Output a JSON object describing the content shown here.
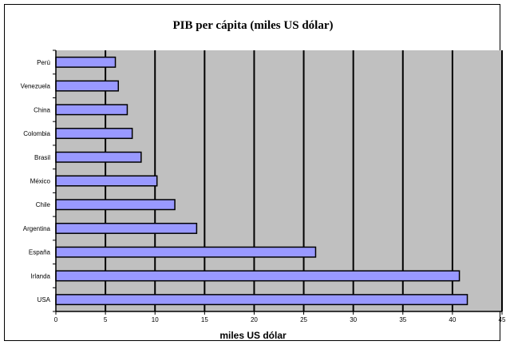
{
  "chart_data": {
    "type": "bar",
    "orientation": "horizontal",
    "title": "PIB per cápita (miles US dólar)",
    "xlabel": "miles US dólar",
    "ylabel": "",
    "categories": [
      "Perú",
      "Venezuela",
      "China",
      "Colombia",
      "Brasil",
      "México",
      "Chile",
      "Argentina",
      "España",
      "Irlanda",
      "USA"
    ],
    "values": [
      6.0,
      6.3,
      7.2,
      7.7,
      8.6,
      10.2,
      12.0,
      14.2,
      26.2,
      40.7,
      41.5
    ],
    "xlim": [
      0,
      45
    ],
    "ticks": [
      0,
      5,
      10,
      15,
      20,
      25,
      30,
      35,
      40,
      45
    ],
    "grid": true,
    "legend": "none",
    "colors": {
      "bar": "#9999ff",
      "plot_background": "#c0c0c0",
      "gridline": "#000000"
    }
  }
}
